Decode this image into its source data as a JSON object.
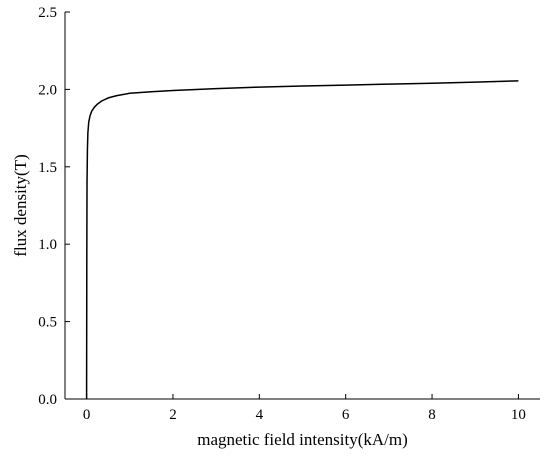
{
  "chart_data": {
    "type": "line",
    "title": "",
    "xlabel": "magnetic field intensity(kA/m)",
    "ylabel": "flux density(T)",
    "xlim": [
      -0.5,
      10.5
    ],
    "ylim": [
      0,
      2.5
    ],
    "xticks": [
      0,
      2,
      4,
      6,
      8,
      10
    ],
    "yticks": [
      0.0,
      0.5,
      1.0,
      1.5,
      2.0,
      2.5
    ],
    "xtick_labels": [
      "0",
      "2",
      "4",
      "6",
      "8",
      "10"
    ],
    "ytick_labels": [
      "0.0",
      "0.5",
      "1.0",
      "1.5",
      "2.0",
      "2.5"
    ],
    "grid": false,
    "legend": "none",
    "series": [
      {
        "color": "#000000",
        "x": [
          0,
          0.005,
          0.01,
          0.02,
          0.03,
          0.05,
          0.08,
          0.12,
          0.18,
          0.25,
          0.35,
          0.5,
          0.7,
          1.0,
          1.5,
          2.0,
          3.0,
          4.0,
          5.0,
          6.0,
          7.0,
          8.0,
          9.0,
          10.0
        ],
        "y": [
          0.0,
          0.9,
          1.4,
          1.62,
          1.72,
          1.79,
          1.83,
          1.86,
          1.885,
          1.905,
          1.925,
          1.945,
          1.96,
          1.975,
          1.985,
          1.993,
          2.005,
          2.015,
          2.022,
          2.028,
          2.034,
          2.04,
          2.047,
          2.055
        ]
      }
    ]
  }
}
